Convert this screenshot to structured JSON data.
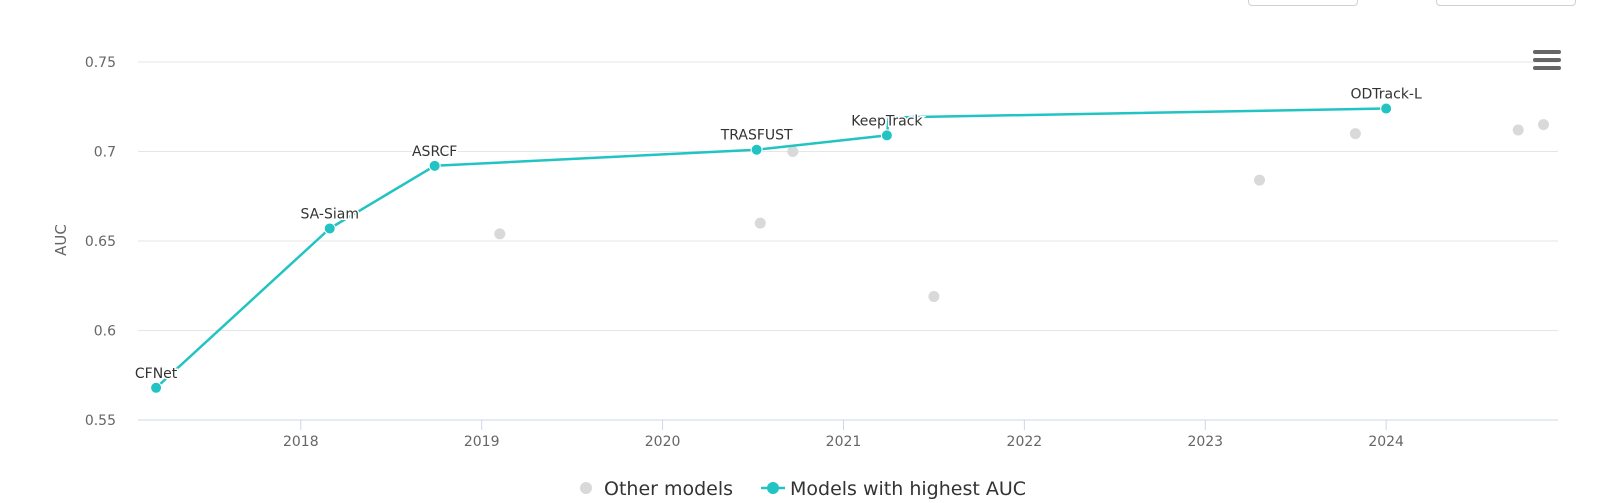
{
  "chart_data": {
    "type": "scatter",
    "ylabel": "AUC",
    "xlim": [
      2017.1,
      2024.95
    ],
    "ylim": [
      0.55,
      0.75
    ],
    "yticks": [
      0.55,
      0.6,
      0.65,
      0.7,
      0.75
    ],
    "ytick_labels": [
      "0.55",
      "0.6",
      "0.65",
      "0.7",
      "0.75"
    ],
    "xticks": [
      2018,
      2019,
      2020,
      2021,
      2022,
      2023,
      2024
    ],
    "xtick_labels": [
      "2018",
      "2019",
      "2020",
      "2021",
      "2022",
      "2023",
      "2024"
    ],
    "grid": true,
    "legend": "bottom",
    "series": [
      {
        "name": "Other models",
        "color": "#d9d9d9",
        "points": [
          {
            "x": 2019.1,
            "y": 0.654
          },
          {
            "x": 2020.54,
            "y": 0.66
          },
          {
            "x": 2020.72,
            "y": 0.7
          },
          {
            "x": 2021.5,
            "y": 0.619
          },
          {
            "x": 2023.3,
            "y": 0.684
          },
          {
            "x": 2023.83,
            "y": 0.71
          },
          {
            "x": 2024.73,
            "y": 0.712
          },
          {
            "x": 2024.87,
            "y": 0.715
          }
        ]
      },
      {
        "name": "Models with highest AUC",
        "color": "#22c3c3",
        "points": [
          {
            "x": 2017.2,
            "y": 0.568,
            "label": "CFNet"
          },
          {
            "x": 2018.16,
            "y": 0.657,
            "label": "SA-Siam"
          },
          {
            "x": 2018.74,
            "y": 0.692,
            "label": "ASRCF"
          },
          {
            "x": 2020.52,
            "y": 0.701,
            "label": "TRASFUST"
          },
          {
            "x": 2021.24,
            "y": 0.709,
            "label": "KeepTrack"
          },
          {
            "x": 2021.25,
            "y": 0.719,
            "label": ""
          },
          {
            "x": 2024.0,
            "y": 0.724,
            "label": "ODTrack-L"
          }
        ]
      }
    ]
  }
}
